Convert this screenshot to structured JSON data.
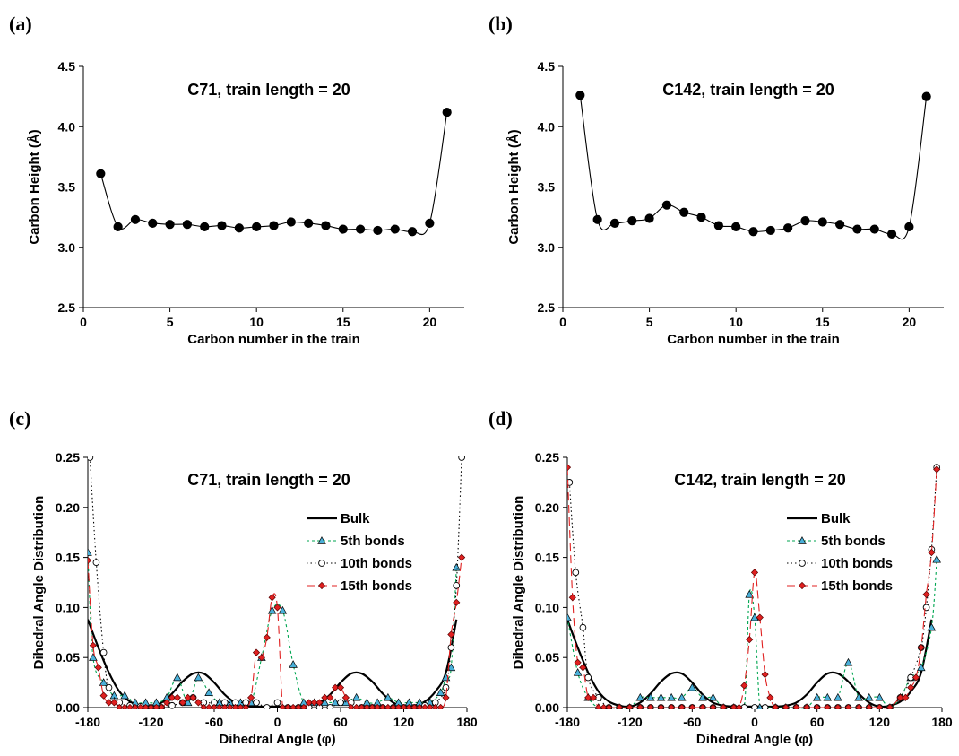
{
  "panels": [
    {
      "letter": "(a)"
    },
    {
      "letter": "(b)"
    },
    {
      "letter": "(c)"
    },
    {
      "letter": "(d)"
    }
  ],
  "chart_data": [
    {
      "type": "line",
      "title": "C71, train length = 20",
      "xlabel": "Carbon number in the train",
      "ylabel": "Carbon Height (Å)",
      "xlim": [
        0,
        22
      ],
      "ylim": [
        2.5,
        4.5
      ],
      "xticks": [
        0,
        5,
        10,
        15,
        20
      ],
      "xtick_labels": [
        "0",
        "5",
        "10",
        "15",
        "20"
      ],
      "yticks": [
        2.5,
        3.0,
        3.5,
        4.0,
        4.5
      ],
      "ytick_labels": [
        "2.5",
        "3.0",
        "3.5",
        "4.0",
        "4.5"
      ],
      "grid": false,
      "series": [
        {
          "x": [
            1,
            2,
            3,
            4,
            5,
            6,
            7,
            8,
            9,
            10,
            11,
            12,
            13,
            14,
            15,
            16,
            17,
            18,
            19,
            20,
            21
          ],
          "values": [
            3.61,
            3.17,
            3.23,
            3.2,
            3.19,
            3.19,
            3.17,
            3.18,
            3.16,
            3.17,
            3.18,
            3.21,
            3.2,
            3.18,
            3.15,
            3.15,
            3.14,
            3.15,
            3.13,
            3.2,
            4.12
          ],
          "color": "#000000",
          "marker": "circle"
        }
      ]
    },
    {
      "type": "line",
      "title": "C142, train length = 20",
      "xlabel": "Carbon number in the train",
      "ylabel": "Carbon Height (Å)",
      "xlim": [
        0,
        22
      ],
      "ylim": [
        2.5,
        4.5
      ],
      "xticks": [
        0,
        5,
        10,
        15,
        20
      ],
      "xtick_labels": [
        "0",
        "5",
        "10",
        "15",
        "20"
      ],
      "yticks": [
        2.5,
        3.0,
        3.5,
        4.0,
        4.5
      ],
      "ytick_labels": [
        "2.5",
        "3.0",
        "3.5",
        "4.0",
        "4.5"
      ],
      "grid": false,
      "series": [
        {
          "x": [
            1,
            2,
            3,
            4,
            5,
            6,
            7,
            8,
            9,
            10,
            11,
            12,
            13,
            14,
            15,
            16,
            17,
            18,
            19,
            20,
            21
          ],
          "values": [
            4.26,
            3.23,
            3.2,
            3.22,
            3.24,
            3.35,
            3.29,
            3.25,
            3.18,
            3.17,
            3.13,
            3.14,
            3.16,
            3.22,
            3.21,
            3.19,
            3.15,
            3.15,
            3.11,
            3.17,
            4.25
          ],
          "color": "#000000",
          "marker": "circle"
        }
      ]
    },
    {
      "type": "line",
      "title": "C71, train length = 20",
      "xlabel": "Dihedral Angle (φ)",
      "ylabel": "Dihedral Angle Distribution",
      "xlim": [
        -180,
        180
      ],
      "ylim": [
        0,
        0.25
      ],
      "xticks": [
        -180,
        -120,
        -60,
        0,
        60,
        120,
        180
      ],
      "xtick_labels": [
        "-180",
        "-120",
        "-60",
        "0",
        "60",
        "120",
        "180"
      ],
      "yticks": [
        0,
        0.05,
        0.1,
        0.15,
        0.2,
        0.25
      ],
      "ytick_labels": [
        "0.00",
        "0.05",
        "0.10",
        "0.15",
        "0.20",
        "0.25"
      ],
      "grid": false,
      "legend_position": "right",
      "series": [
        {
          "name": "Bulk",
          "color": "#000000",
          "dash": "solid",
          "marker": "none",
          "smooth": true,
          "x": [
            -180,
            -170,
            -160,
            -150,
            -140,
            -130,
            -120,
            -110,
            -100,
            -90,
            -80,
            -70,
            -60,
            -50,
            -40,
            -30,
            -20,
            -10,
            0,
            10,
            20,
            30,
            40,
            50,
            60,
            70,
            80,
            90,
            100,
            110,
            120,
            130,
            140,
            150,
            160,
            170
          ],
          "values": [
            0.088,
            0.06,
            0.035,
            0.016,
            0.006,
            0.002,
            0.001,
            0.005,
            0.014,
            0.026,
            0.034,
            0.034,
            0.025,
            0.013,
            0.005,
            0.002,
            0.001,
            0.001,
            0.001,
            0.001,
            0.001,
            0.002,
            0.005,
            0.013,
            0.025,
            0.034,
            0.034,
            0.026,
            0.014,
            0.005,
            0.001,
            0.002,
            0.006,
            0.016,
            0.035,
            0.088
          ]
        },
        {
          "name": "5th bonds",
          "color": "#00a651",
          "dash": "3,3",
          "marker": "triangle",
          "markerColor": "#4ab0d9",
          "x": [
            -180,
            -175,
            -165,
            -155,
            -145,
            -135,
            -125,
            -115,
            -105,
            -95,
            -85,
            -75,
            -65,
            -55,
            -45,
            -35,
            -25,
            -15,
            -5,
            5,
            15,
            25,
            35,
            45,
            55,
            65,
            75,
            85,
            95,
            105,
            115,
            125,
            135,
            145,
            155,
            160,
            165,
            170
          ],
          "values": [
            0.155,
            0.05,
            0.025,
            0.012,
            0.012,
            0.005,
            0.005,
            0.005,
            0.01,
            0.03,
            0.005,
            0.03,
            0.015,
            0.005,
            0.005,
            0.005,
            0.005,
            0.05,
            0.097,
            0.097,
            0.043,
            0.005,
            0.005,
            0.005,
            0.005,
            0.005,
            0.01,
            0.005,
            0.005,
            0.01,
            0.005,
            0.005,
            0.005,
            0.005,
            0.015,
            0.03,
            0.04,
            0.14
          ]
        },
        {
          "name": "10th bonds",
          "color": "#000000",
          "dash": "1.5,3",
          "marker": "open-circle",
          "markerColor": "#ffffff",
          "x": [
            -178,
            -172,
            -165,
            -160,
            -150,
            -140,
            -130,
            -120,
            -110,
            -100,
            -90,
            -80,
            -70,
            -60,
            -50,
            -40,
            -30,
            -20,
            -10,
            0,
            10,
            20,
            30,
            40,
            50,
            60,
            70,
            80,
            90,
            100,
            110,
            120,
            130,
            140,
            150,
            160,
            165,
            170,
            175
          ],
          "values": [
            0.25,
            0.145,
            0.055,
            0.02,
            0.005,
            0.002,
            0.001,
            0.0,
            0.0,
            0.002,
            0.005,
            0.01,
            0.005,
            0.005,
            0.005,
            0.005,
            0.005,
            0.005,
            0.0,
            0.005,
            0.0,
            0.0,
            0.0,
            0.0,
            0.0,
            0.005,
            0.005,
            0.0,
            0.0,
            0.0,
            0.0,
            0.0,
            0.0,
            0.002,
            0.005,
            0.02,
            0.06,
            0.122,
            0.25
          ]
        },
        {
          "name": "15th bonds",
          "color": "#e02020",
          "dash": "9,5",
          "marker": "diamond",
          "markerColor": "#e02020",
          "x": [
            -180,
            -175,
            -170,
            -165,
            -160,
            -155,
            -150,
            -145,
            -140,
            -135,
            -130,
            -125,
            -120,
            -115,
            -110,
            -105,
            -100,
            -95,
            -90,
            -85,
            -80,
            -75,
            -70,
            -65,
            -60,
            -55,
            -50,
            -45,
            -40,
            -35,
            -30,
            -25,
            -20,
            -15,
            -10,
            -5,
            0,
            5,
            10,
            15,
            20,
            25,
            30,
            35,
            40,
            45,
            50,
            55,
            60,
            65,
            70,
            75,
            80,
            85,
            90,
            95,
            100,
            105,
            110,
            115,
            120,
            125,
            130,
            135,
            140,
            145,
            150,
            155,
            160,
            165,
            170,
            175
          ],
          "values": [
            0.147,
            0.062,
            0.04,
            0.012,
            0.005,
            0.005,
            0.0,
            0.0,
            0.0,
            0.0,
            0.0,
            0.0,
            0.0,
            0.0,
            0.0,
            0.005,
            0.01,
            0.01,
            0.005,
            0.01,
            0.01,
            0.005,
            0.0,
            0.0,
            0.0,
            0.0,
            0.0,
            0.0,
            0.0,
            0.0,
            0.0,
            0.01,
            0.055,
            0.05,
            0.07,
            0.11,
            0.1,
            0.0,
            0.0,
            0.0,
            0.0,
            0.0,
            0.005,
            0.005,
            0.005,
            0.01,
            0.01,
            0.02,
            0.02,
            0.01,
            0.0,
            0.0,
            0.0,
            0.0,
            0.0,
            0.0,
            0.0,
            0.0,
            0.0,
            0.0,
            0.0,
            0.0,
            0.0,
            0.0,
            0.0,
            0.0,
            0.0,
            0.0,
            0.01,
            0.073,
            0.105,
            0.15
          ]
        }
      ]
    },
    {
      "type": "line",
      "title": "C142, train length = 20",
      "xlabel": "Dihedral Angle (φ)",
      "ylabel": "Dihedral Angle Distribution",
      "xlim": [
        -180,
        180
      ],
      "ylim": [
        0,
        0.25
      ],
      "xticks": [
        -180,
        -120,
        -60,
        0,
        60,
        120,
        180
      ],
      "xtick_labels": [
        "-180",
        "-120",
        "-60",
        "0",
        "60",
        "120",
        "180"
      ],
      "yticks": [
        0,
        0.05,
        0.1,
        0.15,
        0.2,
        0.25
      ],
      "ytick_labels": [
        "0.00",
        "0.05",
        "0.10",
        "0.15",
        "0.20",
        "0.25"
      ],
      "grid": false,
      "legend_position": "right",
      "series": [
        {
          "name": "Bulk",
          "color": "#000000",
          "dash": "solid",
          "marker": "none",
          "smooth": true,
          "x": [
            -180,
            -170,
            -160,
            -150,
            -140,
            -130,
            -120,
            -110,
            -100,
            -90,
            -80,
            -70,
            -60,
            -50,
            -40,
            -30,
            -20,
            -10,
            0,
            10,
            20,
            30,
            40,
            50,
            60,
            70,
            80,
            90,
            100,
            110,
            120,
            130,
            140,
            150,
            160,
            170
          ],
          "values": [
            0.088,
            0.06,
            0.035,
            0.016,
            0.006,
            0.002,
            0.001,
            0.005,
            0.014,
            0.026,
            0.034,
            0.034,
            0.025,
            0.013,
            0.005,
            0.002,
            0.001,
            0.001,
            0.001,
            0.001,
            0.001,
            0.002,
            0.005,
            0.013,
            0.025,
            0.034,
            0.034,
            0.026,
            0.014,
            0.005,
            0.001,
            0.002,
            0.006,
            0.016,
            0.035,
            0.088
          ]
        },
        {
          "name": "5th bonds",
          "color": "#00a651",
          "dash": "3,3",
          "marker": "triangle",
          "markerColor": "#4ab0d9",
          "x": [
            -180,
            -170,
            -160,
            -150,
            -140,
            -130,
            -120,
            -110,
            -100,
            -90,
            -80,
            -70,
            -60,
            -50,
            -40,
            -30,
            -20,
            -10,
            -5,
            0,
            5,
            10,
            20,
            30,
            40,
            50,
            60,
            70,
            80,
            90,
            100,
            110,
            120,
            130,
            140,
            150,
            160,
            170,
            175
          ],
          "values": [
            0.09,
            0.035,
            0.01,
            0.0,
            0.0,
            0.0,
            0.0,
            0.01,
            0.01,
            0.01,
            0.01,
            0.01,
            0.02,
            0.01,
            0.01,
            0.0,
            0.0,
            0.0,
            0.113,
            0.09,
            0.0,
            0.0,
            0.0,
            0.0,
            0.0,
            0.0,
            0.01,
            0.01,
            0.01,
            0.045,
            0.01,
            0.01,
            0.01,
            0.0,
            0.01,
            0.03,
            0.04,
            0.08,
            0.148
          ]
        },
        {
          "name": "10th bonds",
          "color": "#000000",
          "dash": "1.5,3",
          "marker": "open-circle",
          "markerColor": "#ffffff",
          "x": [
            -178,
            -172,
            -165,
            -160,
            -150,
            -140,
            -130,
            -120,
            -110,
            -100,
            -90,
            -80,
            -70,
            -60,
            -50,
            -40,
            -30,
            -20,
            -10,
            0,
            10,
            20,
            30,
            40,
            50,
            60,
            70,
            80,
            90,
            100,
            110,
            120,
            130,
            140,
            150,
            160,
            165,
            170,
            175
          ],
          "values": [
            0.225,
            0.135,
            0.08,
            0.03,
            0.01,
            0.0,
            0.0,
            0.0,
            0.0,
            0.0,
            0.0,
            0.0,
            0.0,
            0.0,
            0.0,
            0.0,
            0.0,
            0.0,
            0.0,
            0.0,
            0.0,
            0.0,
            0.0,
            0.0,
            0.0,
            0.0,
            0.0,
            0.0,
            0.0,
            0.0,
            0.0,
            0.0,
            0.0,
            0.01,
            0.03,
            0.06,
            0.1,
            0.158,
            0.24
          ]
        },
        {
          "name": "15th bonds",
          "color": "#e02020",
          "dash": "9,5",
          "marker": "diamond",
          "markerColor": "#e02020",
          "x": [
            -180,
            -175,
            -170,
            -165,
            -160,
            -155,
            -150,
            -145,
            -140,
            -130,
            -120,
            -110,
            -100,
            -90,
            -80,
            -70,
            -60,
            -50,
            -40,
            -30,
            -20,
            -15,
            -10,
            -5,
            0,
            5,
            10,
            15,
            20,
            30,
            40,
            50,
            60,
            70,
            80,
            90,
            100,
            110,
            120,
            130,
            140,
            145,
            150,
            155,
            160,
            165,
            170,
            175
          ],
          "values": [
            0.24,
            0.11,
            0.045,
            0.04,
            0.01,
            0.01,
            0.0,
            0.0,
            0.0,
            0.0,
            0.0,
            0.0,
            0.0,
            0.0,
            0.0,
            0.0,
            0.0,
            0.0,
            0.0,
            0.0,
            0.0,
            0.0,
            0.022,
            0.068,
            0.135,
            0.09,
            0.033,
            0.01,
            0.0,
            0.0,
            0.0,
            0.0,
            0.0,
            0.0,
            0.0,
            0.0,
            0.0,
            0.0,
            0.0,
            0.0,
            0.01,
            0.01,
            0.02,
            0.03,
            0.06,
            0.113,
            0.155,
            0.238
          ]
        }
      ]
    }
  ]
}
